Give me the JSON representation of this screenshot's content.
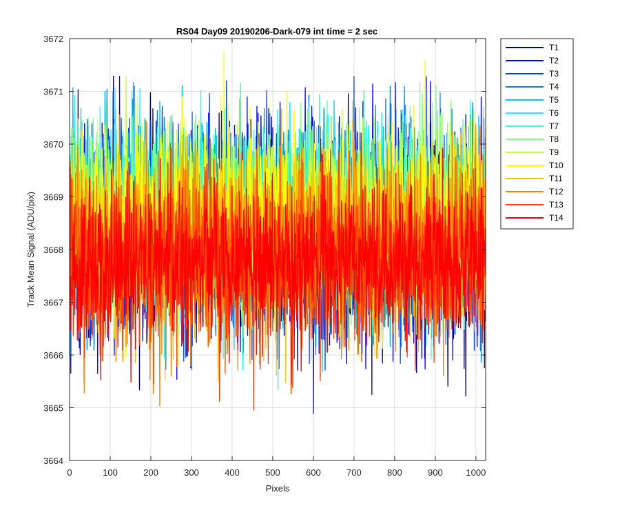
{
  "chart_data": {
    "type": "line",
    "title": "RS04 Day09 20190206-Dark-079 int time = 2 sec",
    "xlabel": "Pixels",
    "ylabel": "Track Mean Signal (ADU/pix)",
    "xlim": [
      0,
      1024
    ],
    "ylim": [
      3664,
      3672
    ],
    "xticks": [
      0,
      100,
      200,
      300,
      400,
      500,
      600,
      700,
      800,
      900,
      1000
    ],
    "yticks": [
      3664,
      3665,
      3666,
      3667,
      3668,
      3669,
      3670,
      3671,
      3672
    ],
    "grid": true,
    "legend_position": "outside-top-right",
    "x_start": 1,
    "x_end": 1024,
    "series": [
      {
        "name": "T1",
        "color": "#00008F",
        "mean": 3668.3,
        "std": 1.1,
        "min": 3664.5,
        "max": 3671.3
      },
      {
        "name": "T2",
        "color": "#0000FF",
        "mean": 3668.3,
        "std": 1.05,
        "min": 3665.4,
        "max": 3671.4
      },
      {
        "name": "T3",
        "color": "#0040FF",
        "mean": 3668.4,
        "std": 1.05,
        "min": 3665.7,
        "max": 3671.5
      },
      {
        "name": "T4",
        "color": "#0080FF",
        "mean": 3668.5,
        "std": 1.0,
        "min": 3665.6,
        "max": 3671.7
      },
      {
        "name": "T5",
        "color": "#00BFFF",
        "mean": 3668.5,
        "std": 0.95,
        "min": 3665.1,
        "max": 3671.3
      },
      {
        "name": "T6",
        "color": "#00FFFF",
        "mean": 3668.6,
        "std": 0.95,
        "min": 3665.3,
        "max": 3671.2
      },
      {
        "name": "T7",
        "color": "#40FFBF",
        "mean": 3668.6,
        "std": 0.9,
        "min": 3665.8,
        "max": 3671.1
      },
      {
        "name": "T8",
        "color": "#80FF80",
        "mean": 3668.6,
        "std": 0.9,
        "min": 3664.7,
        "max": 3671.9
      },
      {
        "name": "T9",
        "color": "#BFFF40",
        "mean": 3668.6,
        "std": 0.9,
        "min": 3664.7,
        "max": 3671.3
      },
      {
        "name": "T10",
        "color": "#FFFF00",
        "mean": 3668.5,
        "std": 0.95,
        "min": 3664.3,
        "max": 3671.9
      },
      {
        "name": "T11",
        "color": "#FFBF00",
        "mean": 3668.2,
        "std": 0.9,
        "min": 3665.0,
        "max": 3671.0
      },
      {
        "name": "T12",
        "color": "#FF8000",
        "mean": 3667.9,
        "std": 0.9,
        "min": 3664.3,
        "max": 3670.6
      },
      {
        "name": "T13",
        "color": "#FF4000",
        "mean": 3667.8,
        "std": 0.85,
        "min": 3664.9,
        "max": 3670.6
      },
      {
        "name": "T14",
        "color": "#FF0000",
        "mean": 3667.8,
        "std": 0.8,
        "min": 3665.2,
        "max": 3671.2
      }
    ]
  }
}
